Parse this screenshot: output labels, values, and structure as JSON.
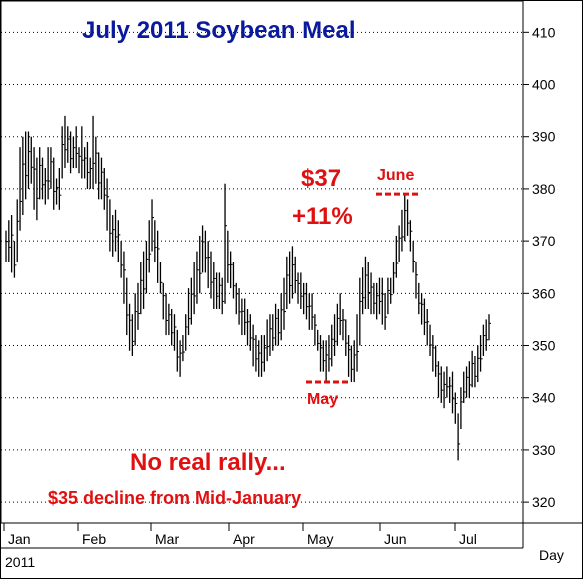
{
  "chart_data": {
    "type": "bar",
    "subtype": "ohlc",
    "title": "July 2011 Soybean Meal",
    "xlabel": "Day",
    "ylabel": "",
    "year_label": "2011",
    "ylim": [
      316,
      416
    ],
    "yticks": [
      320,
      330,
      340,
      350,
      360,
      370,
      380,
      390,
      400,
      410
    ],
    "month_labels": [
      "Jan",
      "Feb",
      "Mar",
      "Apr",
      "May",
      "Jun",
      "Jul"
    ],
    "grid": "dotted-horizontal",
    "colors": {
      "title": "#0a1a9c",
      "annotation": "#e01010",
      "bars": "#000000",
      "grid": "#000000"
    },
    "bars": [
      [
        366,
        372
      ],
      [
        366,
        374
      ],
      [
        364,
        375
      ],
      [
        363,
        370
      ],
      [
        366,
        378
      ],
      [
        372,
        388
      ],
      [
        375,
        390
      ],
      [
        378,
        391
      ],
      [
        380,
        391
      ],
      [
        381,
        390
      ],
      [
        376,
        388
      ],
      [
        374,
        386
      ],
      [
        378,
        388
      ],
      [
        378,
        386
      ],
      [
        377,
        384
      ],
      [
        378,
        388
      ],
      [
        380,
        388
      ],
      [
        376,
        386
      ],
      [
        377,
        382
      ],
      [
        376,
        384
      ],
      [
        382,
        392
      ],
      [
        384,
        394
      ],
      [
        385,
        392
      ],
      [
        383,
        391
      ],
      [
        384,
        390
      ],
      [
        384,
        392
      ],
      [
        383,
        388
      ],
      [
        382,
        392
      ],
      [
        382,
        388
      ],
      [
        380,
        389
      ],
      [
        380,
        386
      ],
      [
        380,
        394
      ],
      [
        381,
        390
      ],
      [
        378,
        387
      ],
      [
        378,
        386
      ],
      [
        376,
        384
      ],
      [
        372,
        382
      ],
      [
        368,
        378
      ],
      [
        367,
        375
      ],
      [
        368,
        376
      ],
      [
        366,
        374
      ],
      [
        363,
        370
      ],
      [
        358,
        368
      ],
      [
        352,
        363
      ],
      [
        349,
        358
      ],
      [
        348,
        356
      ],
      [
        350,
        360
      ],
      [
        353,
        362
      ],
      [
        356,
        366
      ],
      [
        357,
        368
      ],
      [
        360,
        370
      ],
      [
        364,
        374
      ],
      [
        368,
        378
      ],
      [
        366,
        374
      ],
      [
        362,
        372
      ],
      [
        360,
        366
      ],
      [
        355,
        362
      ],
      [
        352,
        360
      ],
      [
        352,
        358
      ],
      [
        350,
        357
      ],
      [
        349,
        356
      ],
      [
        345,
        353
      ],
      [
        344,
        351
      ],
      [
        347,
        352
      ],
      [
        349,
        356
      ],
      [
        352,
        361
      ],
      [
        354,
        363
      ],
      [
        356,
        366
      ],
      [
        358,
        368
      ],
      [
        360,
        371
      ],
      [
        364,
        373
      ],
      [
        364,
        372
      ],
      [
        361,
        370
      ],
      [
        359,
        368
      ],
      [
        357,
        366
      ],
      [
        357,
        364
      ],
      [
        357,
        364
      ],
      [
        356,
        363
      ],
      [
        358,
        381
      ],
      [
        362,
        372
      ],
      [
        361,
        368
      ],
      [
        359,
        366
      ],
      [
        356,
        362
      ],
      [
        354,
        361
      ],
      [
        352,
        359
      ],
      [
        352,
        359
      ],
      [
        350,
        357
      ],
      [
        349,
        356
      ],
      [
        346,
        354
      ],
      [
        345,
        352
      ],
      [
        344,
        351
      ],
      [
        344,
        352
      ],
      [
        345,
        352
      ],
      [
        347,
        355
      ],
      [
        348,
        356
      ],
      [
        349,
        356
      ],
      [
        350,
        358
      ],
      [
        350,
        357
      ],
      [
        351,
        360
      ],
      [
        353,
        363
      ],
      [
        357,
        367
      ],
      [
        358,
        368
      ],
      [
        359,
        369
      ],
      [
        360,
        367
      ],
      [
        358,
        364
      ],
      [
        357,
        364
      ],
      [
        356,
        362
      ],
      [
        355,
        362
      ],
      [
        353,
        360
      ],
      [
        353,
        360
      ],
      [
        350,
        356
      ],
      [
        349,
        353
      ],
      [
        345,
        352
      ],
      [
        345,
        351
      ],
      [
        343,
        351
      ],
      [
        345,
        352
      ],
      [
        346,
        354
      ],
      [
        348,
        356
      ],
      [
        350,
        358
      ],
      [
        352,
        360
      ],
      [
        351,
        357
      ],
      [
        348,
        355
      ],
      [
        344,
        352
      ],
      [
        343,
        350
      ],
      [
        343,
        351
      ],
      [
        345,
        356
      ],
      [
        350,
        363
      ],
      [
        356,
        365
      ],
      [
        357,
        367
      ],
      [
        357,
        366
      ],
      [
        356,
        364
      ],
      [
        356,
        362
      ],
      [
        355,
        362
      ],
      [
        356,
        363
      ],
      [
        354,
        363
      ],
      [
        353,
        360
      ],
      [
        356,
        363
      ],
      [
        358,
        363
      ],
      [
        360,
        366
      ],
      [
        363,
        371
      ],
      [
        366,
        373
      ],
      [
        368,
        376
      ],
      [
        370,
        379
      ],
      [
        371,
        378
      ],
      [
        368,
        374
      ],
      [
        364,
        370
      ],
      [
        359,
        366
      ],
      [
        356,
        362
      ],
      [
        354,
        360
      ],
      [
        352,
        359
      ],
      [
        350,
        357
      ],
      [
        348,
        354
      ],
      [
        345,
        352
      ],
      [
        344,
        350
      ],
      [
        340,
        347
      ],
      [
        339,
        346
      ],
      [
        338,
        345
      ],
      [
        340,
        346
      ],
      [
        339,
        344
      ],
      [
        337,
        345
      ],
      [
        335,
        341
      ],
      [
        328,
        337
      ],
      [
        334,
        342
      ],
      [
        339,
        345
      ],
      [
        340,
        346
      ],
      [
        340,
        347
      ],
      [
        342,
        349
      ],
      [
        342,
        348
      ],
      [
        343,
        350
      ],
      [
        345,
        352
      ],
      [
        348,
        354
      ],
      [
        349,
        355
      ],
      [
        351,
        356
      ]
    ],
    "annotations": [
      {
        "text": "$37",
        "color": "#e01010"
      },
      {
        "text": "+11%",
        "color": "#e01010"
      },
      {
        "text": "June",
        "color": "#e01010",
        "level": 379
      },
      {
        "text": "May",
        "color": "#e01010",
        "level": 343
      },
      {
        "text": "No real rally...",
        "color": "#e01010"
      },
      {
        "text": "$35 decline from Mid-January",
        "color": "#e01010"
      }
    ]
  }
}
